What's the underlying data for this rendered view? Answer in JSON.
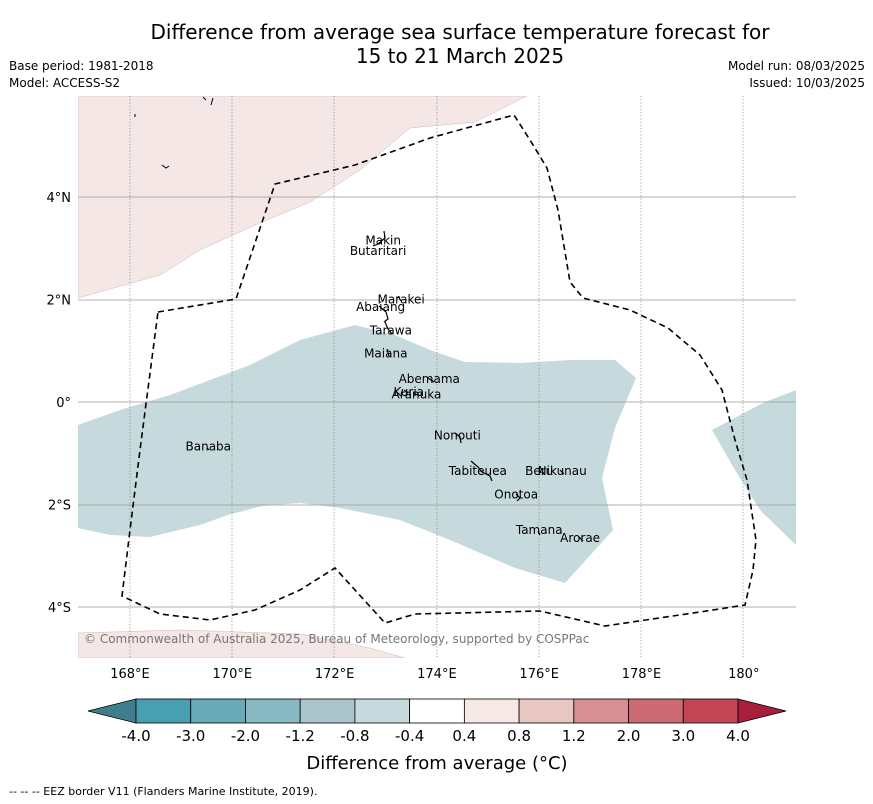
{
  "title_line1": "Difference from average sea surface temperature forecast for",
  "title_line2": "15 to 21 March 2025",
  "base_period": "Base period: 1981-2018",
  "model": "Model: ACCESS-S2",
  "model_run": "Model run: 08/03/2025",
  "issued": "Issued: 10/03/2025",
  "copyright": "© Commonwealth of Australia 2025, Bureau of Meteorology, supported by COSPPac",
  "lon_ticks": [
    "168°E",
    "170°E",
    "172°E",
    "174°E",
    "176°E",
    "178°E",
    "180°"
  ],
  "lat_ticks": [
    "4°N",
    "2°N",
    "0°",
    "2°S",
    "4°S"
  ],
  "islands": [
    {
      "name": "Makin",
      "lon": 172.95,
      "lat": 3.15
    },
    {
      "name": "Butaritari",
      "lon": 172.85,
      "lat": 2.95
    },
    {
      "name": "Marakei",
      "lon": 173.3,
      "lat": 2.0
    },
    {
      "name": "Abaiang",
      "lon": 172.9,
      "lat": 1.85
    },
    {
      "name": "Tarawa",
      "lon": 173.1,
      "lat": 1.4
    },
    {
      "name": "Maiana",
      "lon": 173.0,
      "lat": 0.95
    },
    {
      "name": "Abemama",
      "lon": 173.85,
      "lat": 0.45
    },
    {
      "name": "Kuria",
      "lon": 173.45,
      "lat": 0.2
    },
    {
      "name": "Aranuka",
      "lon": 173.6,
      "lat": 0.15
    },
    {
      "name": "Nonouti",
      "lon": 174.4,
      "lat": -0.65
    },
    {
      "name": "Tabiteuea",
      "lon": 174.8,
      "lat": -1.35
    },
    {
      "name": "Beru",
      "lon": 176.0,
      "lat": -1.35
    },
    {
      "name": "Nikunau",
      "lon": 176.45,
      "lat": -1.35
    },
    {
      "name": "Onotoa",
      "lon": 175.55,
      "lat": -1.8
    },
    {
      "name": "Tamana",
      "lon": 176.0,
      "lat": -2.5
    },
    {
      "name": "Arorae",
      "lon": 176.8,
      "lat": -2.65
    },
    {
      "name": "Banaba",
      "lon": 169.53,
      "lat": -0.87
    }
  ],
  "colorbar": {
    "labels": [
      "-4.0",
      "-3.0",
      "-2.0",
      "-1.2",
      "-0.8",
      "-0.4",
      "0.4",
      "0.8",
      "1.2",
      "2.0",
      "3.0",
      "4.0"
    ],
    "colors": [
      "#489fb0",
      "#68aab8",
      "#88b8c2",
      "#aac6cc",
      "#c6d9dd",
      "#ffffff",
      "#f6e8e5",
      "#e8c6c2",
      "#d88f94",
      "#cc6a74",
      "#c34556"
    ],
    "under_color": "#3f7f8d",
    "over_color": "#a81e3c",
    "label": "Difference from average (°C)"
  },
  "legend_note": "--  --  -- EEZ border V11 (Flanders Marine Institute, 2019).",
  "colors": {
    "warm_anomaly": "#f4e7e5",
    "cool_anomaly": "#c6d9dd",
    "grid": "#999999"
  }
}
